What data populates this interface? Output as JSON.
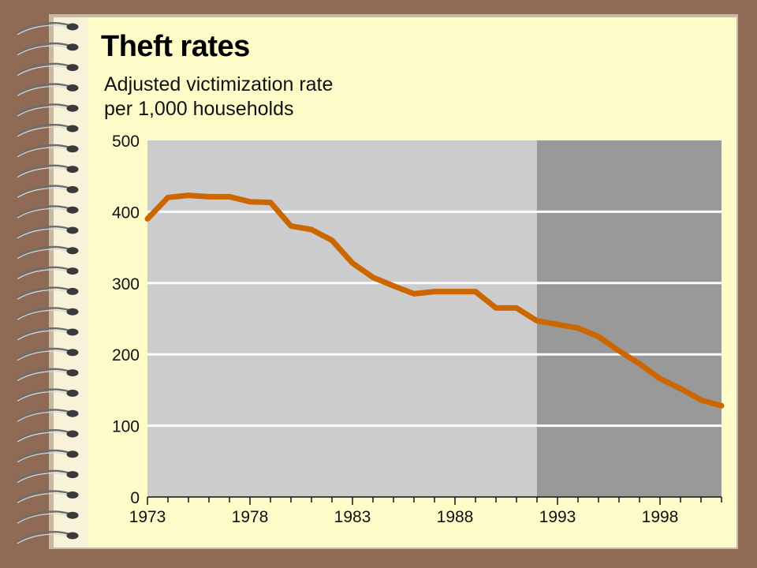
{
  "chart_data": {
    "type": "line",
    "title": "Theft rates",
    "subtitle_lines": [
      "Adjusted victimization rate",
      "per 1,000 households"
    ],
    "xlabel": "",
    "ylabel": "",
    "xlim": [
      1973,
      2001
    ],
    "ylim": [
      0,
      500
    ],
    "y_ticks": [
      0,
      100,
      200,
      300,
      400,
      500
    ],
    "x_tick_labels": [
      1973,
      1978,
      1983,
      1988,
      1993,
      1998
    ],
    "shaded_region_start": 1992,
    "grid": true,
    "series": [
      {
        "x": [
          1973,
          1974,
          1975,
          1976,
          1977,
          1978,
          1979,
          1980,
          1981,
          1982,
          1983,
          1984,
          1985,
          1986,
          1987,
          1988,
          1989,
          1990,
          1991,
          1992,
          1993,
          1994,
          1995,
          1996,
          1997,
          1998,
          1999,
          2000,
          2001
        ],
        "y": [
          390,
          420,
          423,
          421,
          421,
          414,
          413,
          380,
          375,
          360,
          328,
          308,
          296,
          285,
          288,
          288,
          288,
          265,
          265,
          247,
          242,
          237,
          225,
          205,
          187,
          166,
          152,
          136,
          128
        ],
        "color": "#cc6600"
      }
    ]
  },
  "colors": {
    "background": "#8f6b55",
    "paper": "#fdfcc9",
    "plot_light": "#cccccc",
    "plot_dark": "#999999",
    "gridline": "#ffffff",
    "line": "#cc6600"
  }
}
